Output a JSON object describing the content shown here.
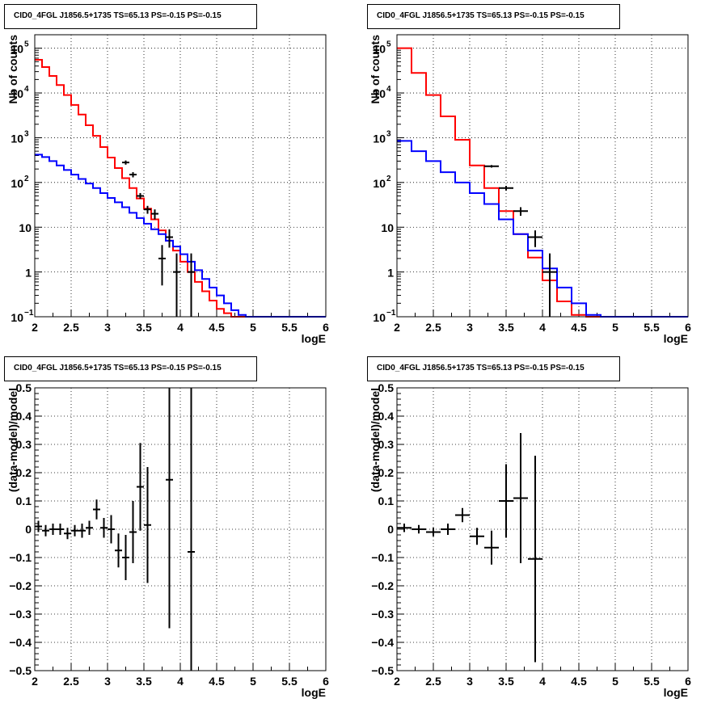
{
  "panels_title": "CID0_4FGL J1856.5+1735 TS=65.13 PS=-0.15 PS=-0.15",
  "colors": {
    "model_total": "#ff0000",
    "model_background": "#0000ff",
    "data": "#000000",
    "grid": "#000000"
  },
  "chart_data": [
    {
      "type": "line",
      "title": "CID0_4FGL J1856.5+1735 TS=65.13 PS=-0.15 PS=-0.15",
      "xlabel": "logE",
      "ylabel": "Nb of counts",
      "xlim": [
        2,
        6
      ],
      "ylim": [
        0.1,
        200000
      ],
      "yscale": "log",
      "grid": true,
      "x_ticks": [
        "2",
        "2.5",
        "3",
        "3.5",
        "4",
        "4.5",
        "5",
        "5.5",
        "6"
      ],
      "y_ticks": [
        {
          "value": 0.1,
          "label": "10",
          "sup": "−1"
        },
        {
          "value": 1,
          "label": "1",
          "sup": ""
        },
        {
          "value": 10,
          "label": "10",
          "sup": ""
        },
        {
          "value": 100,
          "label": "10",
          "sup": "2"
        },
        {
          "value": 1000,
          "label": "10",
          "sup": "3"
        },
        {
          "value": 10000,
          "label": "10",
          "sup": "4"
        },
        {
          "value": 100000,
          "label": "10",
          "sup": "5"
        }
      ],
      "bin_edges": [
        2,
        2.1,
        2.2,
        2.3,
        2.4,
        2.5,
        2.6,
        2.7,
        2.8,
        2.9,
        3,
        3.1,
        3.2,
        3.3,
        3.4,
        3.5,
        3.6,
        3.7,
        3.8,
        3.9,
        4,
        4.1,
        4.2,
        4.3,
        4.4,
        4.5,
        4.6,
        4.7,
        4.8,
        4.9,
        5,
        5.1,
        5.2,
        5.3,
        5.4,
        5.5,
        5.6,
        5.7,
        5.8,
        5.9,
        6
      ],
      "series": [
        {
          "role": "total",
          "values": [
            55000,
            38000,
            24000,
            15000,
            9000,
            5400,
            3300,
            1900,
            1100,
            620,
            360,
            210,
            125,
            75,
            44,
            26,
            15,
            8.5,
            5,
            3,
            1.7,
            1.0,
            0.6,
            0.37,
            0.23,
            0.15,
            0.12,
            0.1,
            0.1,
            0.1,
            0.1,
            0.1,
            0.1,
            0.1,
            0.1,
            0.1,
            0.1,
            0.1,
            0.1,
            0.1
          ]
        },
        {
          "role": "background",
          "values": [
            420,
            370,
            300,
            240,
            190,
            150,
            120,
            95,
            75,
            58,
            45,
            36,
            28,
            21,
            16,
            12,
            9,
            7,
            5,
            3.7,
            2.5,
            1.7,
            1.1,
            0.7,
            0.45,
            0.3,
            0.2,
            0.14,
            0.11,
            0.1,
            0.1,
            0.1,
            0.1,
            0.1,
            0.1,
            0.1,
            0.1,
            0.1,
            0.1,
            0.1
          ]
        }
      ],
      "points": [
        {
          "x": 3.25,
          "y": 280,
          "ylo": 250,
          "yhi": 310
        },
        {
          "x": 3.35,
          "y": 150,
          "ylo": 130,
          "yhi": 170
        },
        {
          "x": 3.45,
          "y": 50,
          "ylo": 43,
          "yhi": 58
        },
        {
          "x": 3.55,
          "y": 25,
          "ylo": 20,
          "yhi": 30
        },
        {
          "x": 3.65,
          "y": 20,
          "ylo": 15,
          "yhi": 25
        },
        {
          "x": 3.75,
          "y": 2,
          "ylo": 0.5,
          "yhi": 4
        },
        {
          "x": 3.85,
          "y": 6,
          "ylo": 3.5,
          "yhi": 9
        },
        {
          "x": 3.95,
          "y": 1,
          "ylo": 0.1,
          "yhi": 2.6
        },
        {
          "x": 4.15,
          "y": 1,
          "ylo": 0.1,
          "yhi": 2.6
        }
      ]
    },
    {
      "type": "line",
      "title": "CID0_4FGL J1856.5+1735 TS=65.13 PS=-0.15 PS=-0.15",
      "xlabel": "logE",
      "ylabel": "Nb of counts",
      "xlim": [
        2,
        6
      ],
      "ylim": [
        0.1,
        200000
      ],
      "yscale": "log",
      "grid": true,
      "x_ticks": [
        "2",
        "2.5",
        "3",
        "3.5",
        "4",
        "4.5",
        "5",
        "5.5",
        "6"
      ],
      "y_ticks": [
        {
          "value": 0.1,
          "label": "10",
          "sup": "−1"
        },
        {
          "value": 1,
          "label": "1",
          "sup": ""
        },
        {
          "value": 10,
          "label": "10",
          "sup": ""
        },
        {
          "value": 100,
          "label": "10",
          "sup": "2"
        },
        {
          "value": 1000,
          "label": "10",
          "sup": "3"
        },
        {
          "value": 10000,
          "label": "10",
          "sup": "4"
        },
        {
          "value": 100000,
          "label": "10",
          "sup": "5"
        }
      ],
      "bin_edges": [
        2,
        2.2,
        2.4,
        2.6,
        2.8,
        3,
        3.2,
        3.4,
        3.6,
        3.8,
        4,
        4.2,
        4.4,
        4.6,
        4.8,
        5,
        5.2,
        5.4,
        5.6,
        5.8,
        6
      ],
      "series": [
        {
          "role": "total",
          "values": [
            100000,
            28000,
            9000,
            3000,
            900,
            240,
            75,
            23,
            7,
            2.1,
            0.65,
            0.22,
            0.11,
            0.1,
            0.1,
            0.1,
            0.1,
            0.1,
            0.1,
            0.1
          ]
        },
        {
          "role": "background",
          "values": [
            850,
            500,
            300,
            170,
            100,
            58,
            33,
            15,
            7,
            3,
            1.2,
            0.45,
            0.2,
            0.11,
            0.1,
            0.1,
            0.1,
            0.1,
            0.1,
            0.1
          ]
        }
      ],
      "points": [
        {
          "x": 3.3,
          "y": 230,
          "ylo": 215,
          "yhi": 245
        },
        {
          "x": 3.5,
          "y": 75,
          "ylo": 66,
          "yhi": 84
        },
        {
          "x": 3.7,
          "y": 23,
          "ylo": 18,
          "yhi": 28
        },
        {
          "x": 3.9,
          "y": 6,
          "ylo": 3.6,
          "yhi": 8.5
        },
        {
          "x": 4.1,
          "y": 1,
          "ylo": 0.1,
          "yhi": 2.6
        }
      ]
    },
    {
      "type": "scatter",
      "title": "CID0_4FGL J1856.5+1735 TS=65.13 PS=-0.15 PS=-0.15",
      "xlabel": "logE",
      "ylabel": "(data-model)/model",
      "xlim": [
        2,
        6
      ],
      "ylim": [
        -0.5,
        0.5
      ],
      "grid": true,
      "x_ticks": [
        "2",
        "2.5",
        "3",
        "3.5",
        "4",
        "4.5",
        "5",
        "5.5",
        "6"
      ],
      "y_ticks": [
        "−0.5",
        "−0.4",
        "−0.3",
        "−0.2",
        "−0.1",
        "0",
        "0.1",
        "0.2",
        "0.3",
        "0.4",
        "0.5"
      ],
      "xerr": 0.05,
      "points": [
        {
          "x": 2.05,
          "y": 0.01,
          "err": 0.02
        },
        {
          "x": 2.15,
          "y": -0.005,
          "err": 0.02
        },
        {
          "x": 2.25,
          "y": 0.0,
          "err": 0.02
        },
        {
          "x": 2.35,
          "y": 0.0,
          "err": 0.02
        },
        {
          "x": 2.45,
          "y": -0.015,
          "err": 0.02
        },
        {
          "x": 2.55,
          "y": -0.005,
          "err": 0.02
        },
        {
          "x": 2.65,
          "y": -0.005,
          "err": 0.025
        },
        {
          "x": 2.75,
          "y": 0.005,
          "err": 0.025
        },
        {
          "x": 2.85,
          "y": 0.07,
          "err": 0.035
        },
        {
          "x": 2.95,
          "y": 0.005,
          "err": 0.035
        },
        {
          "x": 3.05,
          "y": 0.0,
          "err": 0.05
        },
        {
          "x": 3.15,
          "y": -0.075,
          "err": 0.06
        },
        {
          "x": 3.25,
          "y": -0.1,
          "err": 0.08
        },
        {
          "x": 3.35,
          "y": -0.01,
          "err": 0.11
        },
        {
          "x": 3.45,
          "y": 0.15,
          "err": 0.155
        },
        {
          "x": 3.55,
          "y": 0.015,
          "err": 0.205
        },
        {
          "x": 3.85,
          "y": 0.175,
          "err": 0.525
        },
        {
          "x": 4.15,
          "y": -0.08,
          "err": 0.58
        }
      ]
    },
    {
      "type": "scatter",
      "title": "CID0_4FGL J1856.5+1735 TS=65.13 PS=-0.15 PS=-0.15",
      "xlabel": "logE",
      "ylabel": "(data-model)/model",
      "xlim": [
        2,
        6
      ],
      "ylim": [
        -0.5,
        0.5
      ],
      "grid": true,
      "x_ticks": [
        "2",
        "2.5",
        "3",
        "3.5",
        "4",
        "4.5",
        "5",
        "5.5",
        "6"
      ],
      "y_ticks": [
        "−0.5",
        "−0.4",
        "−0.3",
        "−0.2",
        "−0.1",
        "0",
        "0.1",
        "0.2",
        "0.3",
        "0.4",
        "0.5"
      ],
      "xerr": 0.1,
      "points": [
        {
          "x": 2.1,
          "y": 0.005,
          "err": 0.015
        },
        {
          "x": 2.3,
          "y": 0.0,
          "err": 0.015
        },
        {
          "x": 2.5,
          "y": -0.01,
          "err": 0.015
        },
        {
          "x": 2.7,
          "y": 0.0,
          "err": 0.02
        },
        {
          "x": 2.9,
          "y": 0.05,
          "err": 0.025
        },
        {
          "x": 3.1,
          "y": -0.025,
          "err": 0.03
        },
        {
          "x": 3.3,
          "y": -0.065,
          "err": 0.06
        },
        {
          "x": 3.5,
          "y": 0.1,
          "err": 0.13
        },
        {
          "x": 3.7,
          "y": 0.11,
          "err": 0.23
        },
        {
          "x": 3.9,
          "y": -0.105,
          "err": 0.365
        }
      ]
    }
  ]
}
